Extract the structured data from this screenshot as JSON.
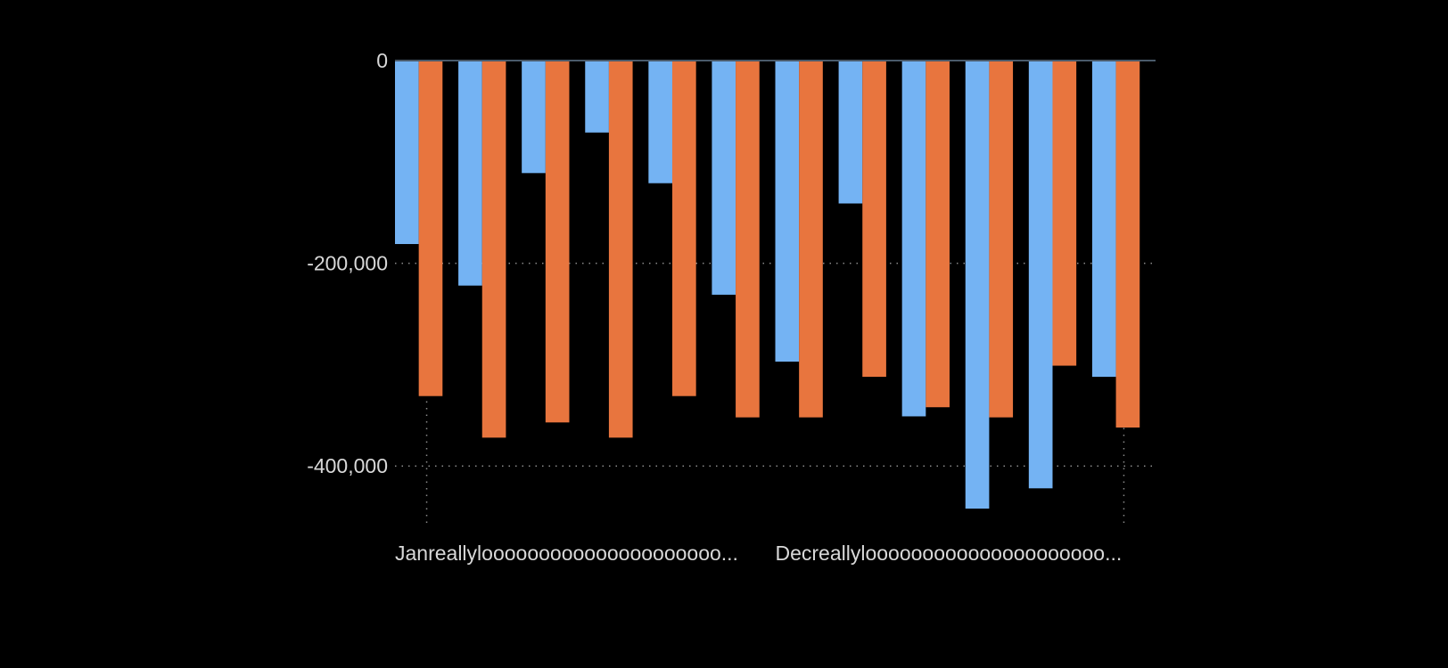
{
  "chart_data": {
    "type": "bar",
    "categories": [
      "Janreallylooooooooooooooooooooo...",
      "",
      "",
      "",
      "",
      "",
      "Decreallylooooooooooooooooooooo...",
      "",
      "",
      "",
      "",
      ""
    ],
    "series": [
      {
        "color": "#74b3f3",
        "values": [
          -181000,
          -222000,
          -111000,
          -71000,
          -121000,
          -231000,
          -297000,
          -141000,
          -351000,
          -442000,
          -422000,
          -312000
        ]
      },
      {
        "color": "#e8753e",
        "values": [
          -331000,
          -372000,
          -357000,
          -372000,
          -331000,
          -352000,
          -352000,
          -312000,
          -342000,
          -352000,
          -301000,
          -362000
        ]
      }
    ],
    "yticks": [
      0,
      -200000,
      -400000
    ],
    "ytick_labels": [
      "0",
      "-200,000",
      "-400,000"
    ],
    "ylim": [
      -440000,
      0
    ],
    "grid": true,
    "legend": "none"
  }
}
